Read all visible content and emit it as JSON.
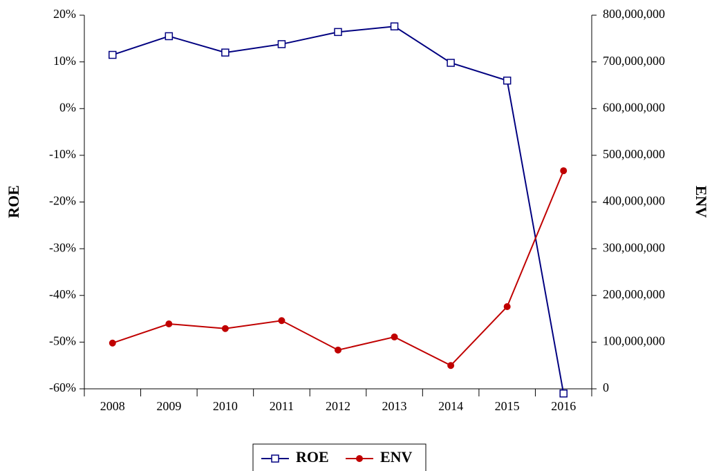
{
  "chart_data": {
    "type": "line",
    "y_label": "ROE",
    "y2_label": "ENV",
    "categories": [
      "2008",
      "2009",
      "2010",
      "2011",
      "2012",
      "2013",
      "2014",
      "2015",
      "2016"
    ],
    "series": [
      {
        "name": "ROE",
        "color": "#000080",
        "values": [
          11.5,
          15.5,
          12,
          13.8,
          16.4,
          17.6,
          9.8,
          6,
          -61
        ]
      },
      {
        "name": "ENV",
        "color": "#c00000",
        "axis": "y2",
        "values": [
          98000000,
          139000000,
          129000000,
          146000000,
          83000000,
          111000000,
          50000000,
          176000000,
          467000000
        ]
      }
    ],
    "ylim": [
      -60,
      20
    ],
    "yticks": [
      {
        "value": -60,
        "label": "-60%"
      },
      {
        "value": -50,
        "label": "-50%"
      },
      {
        "value": -40,
        "label": "-40%"
      },
      {
        "value": -30,
        "label": "-30%"
      },
      {
        "value": -20,
        "label": "-20%"
      },
      {
        "value": -10,
        "label": "-10%"
      },
      {
        "value": 0,
        "label": "0%"
      },
      {
        "value": 10,
        "label": "10%"
      },
      {
        "value": 20,
        "label": "20%"
      }
    ],
    "y2lim": [
      0,
      800000000
    ],
    "y2ticks": [
      0,
      {
        "value": 100000000,
        "label": "100,000,000"
      },
      {
        "value": 200000000,
        "label": "200,000,000"
      },
      {
        "value": 300000000,
        "label": "300,000,000"
      },
      {
        "value": 400000000,
        "label": "400,000,000"
      },
      {
        "value": 500000000,
        "label": "500,000,000"
      },
      {
        "value": 600000000,
        "label": "600,000,000"
      },
      {
        "value": 700000000,
        "label": "700,000,000"
      },
      {
        "value": 800000000,
        "label": "800,000,000"
      }
    ],
    "grid": false
  }
}
